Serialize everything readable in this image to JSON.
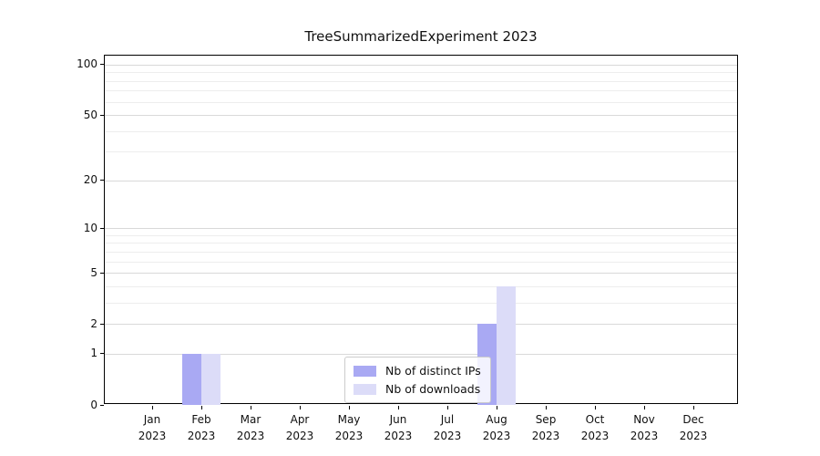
{
  "title": "TreeSummarizedExperiment 2023",
  "chart_data": {
    "type": "bar",
    "title": "TreeSummarizedExperiment 2023",
    "categories": [
      "Jan",
      "Feb",
      "Mar",
      "Apr",
      "May",
      "Jun",
      "Jul",
      "Aug",
      "Sep",
      "Oct",
      "Nov",
      "Dec"
    ],
    "year": "2023",
    "series": [
      {
        "name": "Nb of distinct IPs",
        "color": "#a9a9f3",
        "values": [
          0,
          1,
          0,
          0,
          0,
          0,
          0,
          2,
          0,
          0,
          0,
          0
        ]
      },
      {
        "name": "Nb of downloads",
        "color": "#dcdcf8",
        "values": [
          0,
          1,
          0,
          0,
          0,
          0,
          0,
          4,
          0,
          0,
          0,
          0
        ]
      }
    ],
    "xlabel": "",
    "ylabel": "",
    "yscale": "log1p",
    "yticks": [
      0,
      1,
      2,
      5,
      10,
      20,
      50,
      100
    ],
    "yticks_minor": [
      3,
      4,
      6,
      7,
      8,
      9,
      30,
      40,
      60,
      70,
      80,
      90
    ],
    "ylim": [
      0,
      113
    ],
    "grid": true,
    "legend_position": "inside lower-center"
  },
  "colors": {
    "grid_major": "#d9d9d9",
    "grid_minor": "#ededed",
    "axis": "#000000",
    "legend_border": "#cccccc",
    "background": "#ffffff"
  }
}
